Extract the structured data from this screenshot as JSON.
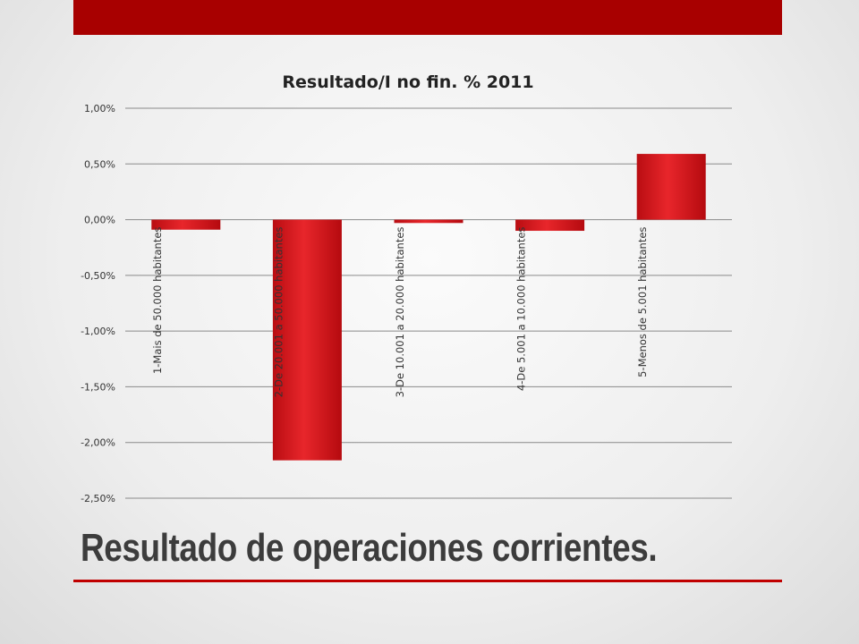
{
  "slide": {
    "title": "Resultado de operaciones corrientes."
  },
  "colors": {
    "banner": "#a80000",
    "bar": "#d8161d",
    "rule": "#c00000"
  },
  "chart_data": {
    "type": "bar",
    "title": "Resultado/I no fin. % 2011",
    "xlabel": "",
    "ylabel": "",
    "categories": [
      "1-Mais de 50.000 habitantes",
      "2-De 20.001 a 50.000 habitantes",
      "3-De 10.001 a 20.000 habitantes",
      "4-De 5.001 a 10.000 habitantes",
      "5-Menos de 5.001 habitantes"
    ],
    "values": [
      -0.09,
      -2.16,
      -0.03,
      -0.1,
      0.59
    ],
    "ylim": [
      -2.5,
      1.0
    ],
    "yticks": [
      1.0,
      0.5,
      0.0,
      -0.5,
      -1.0,
      -1.5,
      -2.0,
      -2.5
    ],
    "ytick_labels": [
      "1,00%",
      "0,50%",
      "0,00%",
      "-0,50%",
      "-1,00%",
      "-1,50%",
      "-2,00%",
      "-2,50%"
    ],
    "grid": true,
    "legend": "none"
  }
}
